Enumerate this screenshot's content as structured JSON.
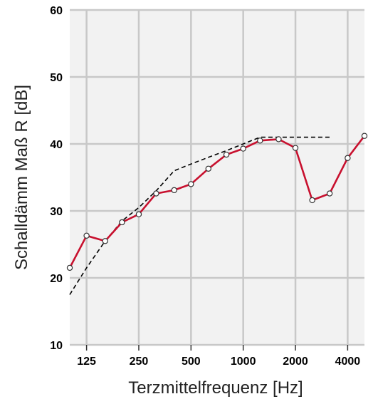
{
  "chart_data": {
    "type": "line",
    "title": "",
    "xlabel": "Terzmittelfrequenz [Hz]",
    "ylabel": "Schalldämm Maß R [dB]",
    "x_scale": "log",
    "ylim": [
      10,
      60
    ],
    "y_ticks": [
      10,
      20,
      30,
      40,
      50,
      60
    ],
    "x_ticks": [
      {
        "value": 125,
        "label": "125"
      },
      {
        "value": 250,
        "label": "250"
      },
      {
        "value": 500,
        "label": "500"
      },
      {
        "value": 1000,
        "label": "1000"
      },
      {
        "value": 2000,
        "label": "2000"
      },
      {
        "value": 4000,
        "label": "4000"
      }
    ],
    "grid": true,
    "colors": {
      "plot_background": "#f2f2f2",
      "grid": "#c8c8c8",
      "measured": "#c8102e",
      "reference": "#000000"
    },
    "series": [
      {
        "style": "solid-with-markers",
        "x": [
          100,
          125,
          160,
          200,
          250,
          315,
          400,
          500,
          630,
          800,
          1000,
          1250,
          1600,
          2000,
          2500,
          3150,
          4000,
          5000
        ],
        "y": [
          21.5,
          26.3,
          25.5,
          28.3,
          29.5,
          32.6,
          33.1,
          34.0,
          36.3,
          38.4,
          39.3,
          40.5,
          40.7,
          39.4,
          31.6,
          32.6,
          37.9,
          41.2
        ]
      },
      {
        "style": "dashed",
        "x": [
          100,
          125,
          160,
          200,
          250,
          315,
          400,
          500,
          630,
          800,
          1000,
          1250,
          1600,
          2000,
          2500,
          3150
        ],
        "y": [
          17.5,
          21.5,
          25.5,
          28.5,
          30.5,
          33.0,
          36.0,
          37.0,
          38.0,
          39.0,
          40.0,
          41.0,
          41.0,
          41.0,
          41.0,
          41.0
        ]
      }
    ]
  }
}
